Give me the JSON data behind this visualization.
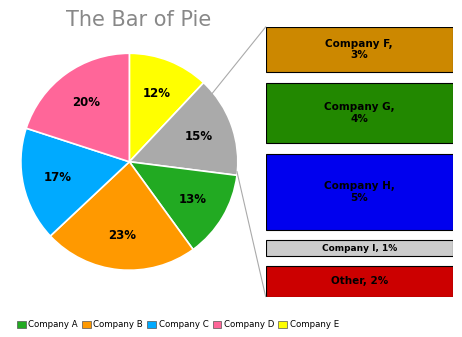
{
  "title": "The Bar of Pie",
  "title_fontsize": 15,
  "title_color": "#888888",
  "pie_sizes": [
    12,
    15,
    13,
    23,
    17,
    20
  ],
  "pie_colors": [
    "#ffff00",
    "#aaaaaa",
    "#22aa22",
    "#ff9900",
    "#00aaff",
    "#ff6699"
  ],
  "pie_pct_labels": [
    "12%",
    "15%",
    "13%",
    "23%",
    "17%",
    "20%"
  ],
  "bar_labels": [
    "Company F,\n3%",
    "Company G,\n4%",
    "Company H,\n5%",
    "Company I, 1%",
    "Other, 2%"
  ],
  "bar_values": [
    3,
    4,
    5,
    1,
    2
  ],
  "bar_colors": [
    "#cc8800",
    "#228800",
    "#0000ee",
    "#cccccc",
    "#cc0000"
  ],
  "legend_items": [
    {
      "label": "Company A",
      "color": "#22aa22"
    },
    {
      "label": "Company B",
      "color": "#ff9900"
    },
    {
      "label": "Company C",
      "color": "#00aaff"
    },
    {
      "label": "Company D",
      "color": "#ff6699"
    },
    {
      "label": "Company E",
      "color": "#ffff00"
    }
  ],
  "background_color": "#ffffff",
  "border_color": "#aaaaaa",
  "connector_color": "#aaaaaa"
}
